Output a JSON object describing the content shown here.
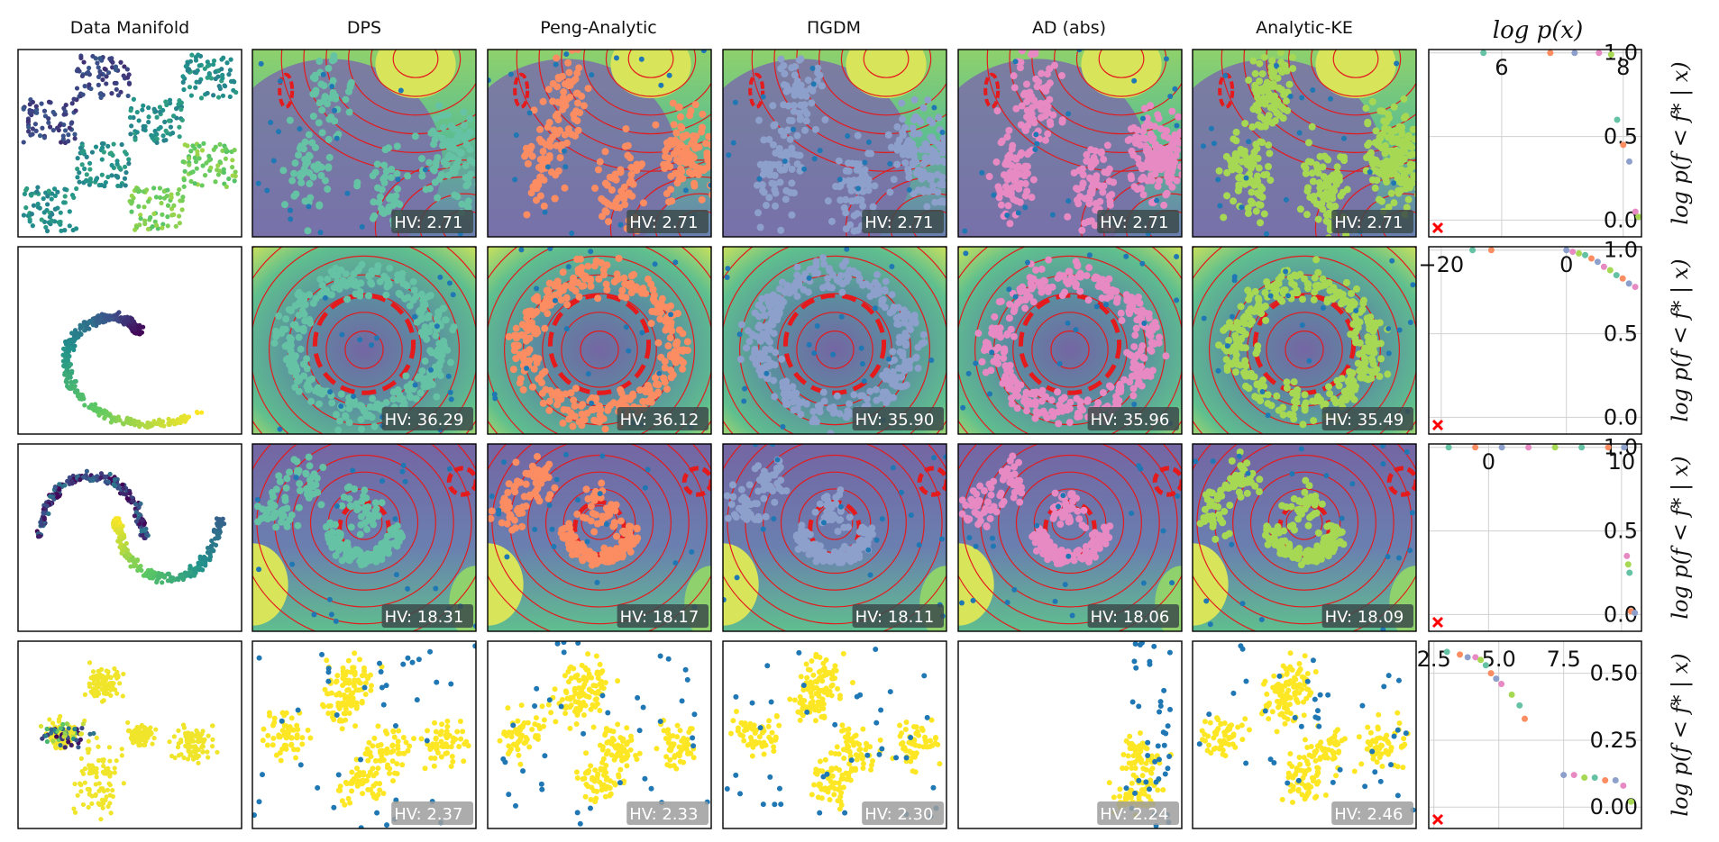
{
  "colors": {
    "DPS": "#66c2a5",
    "Peng-Analytic": "#fc8d62",
    "PiGDM": "#8da0cb",
    "AD (abs)": "#e78ac3",
    "Analytic-KE": "#a6d854",
    "observed": "#1f77b4",
    "contour": "#e41a1c",
    "manifold_low": "#440154",
    "manifold_high": "#fde725",
    "marker": "#ff0000"
  },
  "chart_data": {
    "type": "scatter",
    "column_titles": [
      "Data Manifold",
      "DPS",
      "Peng-Analytic",
      "ΠGDM",
      "AD (abs)",
      "Analytic-KE",
      "log p(x)"
    ],
    "methods": [
      "DPS",
      "Peng-Analytic",
      "PiGDM",
      "AD (abs)",
      "Analytic-KE"
    ],
    "ylabel": "log p(f < f* | x)",
    "rows": [
      {
        "manifold": "checkerboard",
        "landscape": "hills",
        "hv": [
          "HV: 2.71",
          "HV: 2.71",
          "HV: 2.71",
          "HV: 2.71",
          "HV: 2.71"
        ],
        "pareto": {
          "x_ticks": [
            {
              "label": "6",
              "value": 6
            },
            {
              "label": "8",
              "value": 8
            }
          ],
          "y_ticks": [
            {
              "label": "1.0",
              "value": 1.0
            },
            {
              "label": "0.5",
              "value": 0.5
            },
            {
              "label": "0.0",
              "value": 0.0
            }
          ],
          "xlim": [
            4.8,
            8.3
          ],
          "ylim": [
            -0.1,
            1.02
          ],
          "points": [
            [
              5.7,
              1.0
            ],
            [
              6.8,
              1.0
            ],
            [
              7.2,
              1.0
            ],
            [
              7.6,
              1.0
            ],
            [
              7.8,
              0.99
            ],
            [
              7.9,
              0.6
            ],
            [
              8.0,
              0.45
            ],
            [
              8.1,
              0.35
            ],
            [
              8.2,
              0.05
            ],
            [
              8.25,
              0.02
            ]
          ]
        }
      },
      {
        "manifold": "spiral",
        "landscape": "rings",
        "hv": [
          "HV: 36.29",
          "HV: 36.12",
          "HV: 35.90",
          "HV: 35.96",
          "HV: 35.49"
        ],
        "pareto": {
          "x_ticks": [
            {
              "label": "−20",
              "value": -20
            },
            {
              "label": "0",
              "value": 0
            }
          ],
          "y_ticks": [
            {
              "label": "1.0",
              "value": 1.0
            },
            {
              "label": "0.5",
              "value": 0.5
            },
            {
              "label": "0.0",
              "value": 0.0
            }
          ],
          "xlim": [
            -22,
            12
          ],
          "ylim": [
            -0.1,
            1.02
          ],
          "points": [
            [
              -15,
              1.0
            ],
            [
              -12,
              1.0
            ],
            [
              0,
              1.0
            ],
            [
              1,
              0.99
            ],
            [
              2,
              0.98
            ],
            [
              3,
              0.97
            ],
            [
              4,
              0.95
            ],
            [
              5,
              0.93
            ],
            [
              6,
              0.9
            ],
            [
              7,
              0.88
            ],
            [
              8,
              0.85
            ],
            [
              9,
              0.83
            ],
            [
              10,
              0.8
            ],
            [
              11,
              0.78
            ]
          ]
        }
      },
      {
        "manifold": "moons",
        "landscape": "valley",
        "hv": [
          "HV: 18.31",
          "HV: 18.17",
          "HV: 18.11",
          "HV: 18.06",
          "HV: 18.09"
        ],
        "pareto": {
          "x_ticks": [
            {
              "label": "0",
              "value": 0
            },
            {
              "label": "10",
              "value": 10
            }
          ],
          "y_ticks": [
            {
              "label": "1.0",
              "value": 1.0
            },
            {
              "label": "0.5",
              "value": 0.5
            },
            {
              "label": "0.0",
              "value": 0.0
            }
          ],
          "xlim": [
            -4.5,
            11.5
          ],
          "ylim": [
            -0.1,
            1.02
          ],
          "points": [
            [
              -3,
              1.0
            ],
            [
              -1,
              1.0
            ],
            [
              1,
              1.0
            ],
            [
              3,
              1.0
            ],
            [
              5,
              1.0
            ],
            [
              7,
              1.0
            ],
            [
              9,
              1.0
            ],
            [
              10.2,
              1.0
            ],
            [
              10.4,
              0.35
            ],
            [
              10.5,
              0.3
            ],
            [
              10.6,
              0.25
            ],
            [
              10.7,
              0.02
            ],
            [
              11,
              0.01
            ]
          ]
        }
      },
      {
        "manifold": "clusters",
        "landscape": "none",
        "hv": [
          "HV: 2.37",
          "HV: 2.33",
          "HV: 2.30",
          "HV: 2.24",
          "HV: 2.46"
        ],
        "pareto": {
          "x_ticks": [
            {
              "label": "2.5",
              "value": 2.5
            },
            {
              "label": "5.0",
              "value": 5.0
            },
            {
              "label": "7.5",
              "value": 7.5
            }
          ],
          "y_ticks": [
            {
              "label": "0.50",
              "value": 0.5
            },
            {
              "label": "0.25",
              "value": 0.25
            },
            {
              "label": "0.00",
              "value": 0.0
            }
          ],
          "xlim": [
            2.3,
            10.5
          ],
          "ylim": [
            -0.08,
            0.62
          ],
          "points": [
            [
              3.0,
              0.58
            ],
            [
              3.5,
              0.57
            ],
            [
              3.8,
              0.56
            ],
            [
              4.1,
              0.56
            ],
            [
              4.3,
              0.55
            ],
            [
              4.5,
              0.53
            ],
            [
              4.7,
              0.5
            ],
            [
              4.9,
              0.48
            ],
            [
              5.1,
              0.46
            ],
            [
              5.5,
              0.42
            ],
            [
              5.8,
              0.38
            ],
            [
              6.0,
              0.33
            ],
            [
              7.5,
              0.12
            ],
            [
              7.9,
              0.12
            ],
            [
              8.3,
              0.11
            ],
            [
              8.7,
              0.11
            ],
            [
              9.1,
              0.1
            ],
            [
              9.5,
              0.1
            ],
            [
              9.8,
              0.08
            ],
            [
              10.1,
              0.02
            ]
          ]
        }
      }
    ]
  }
}
